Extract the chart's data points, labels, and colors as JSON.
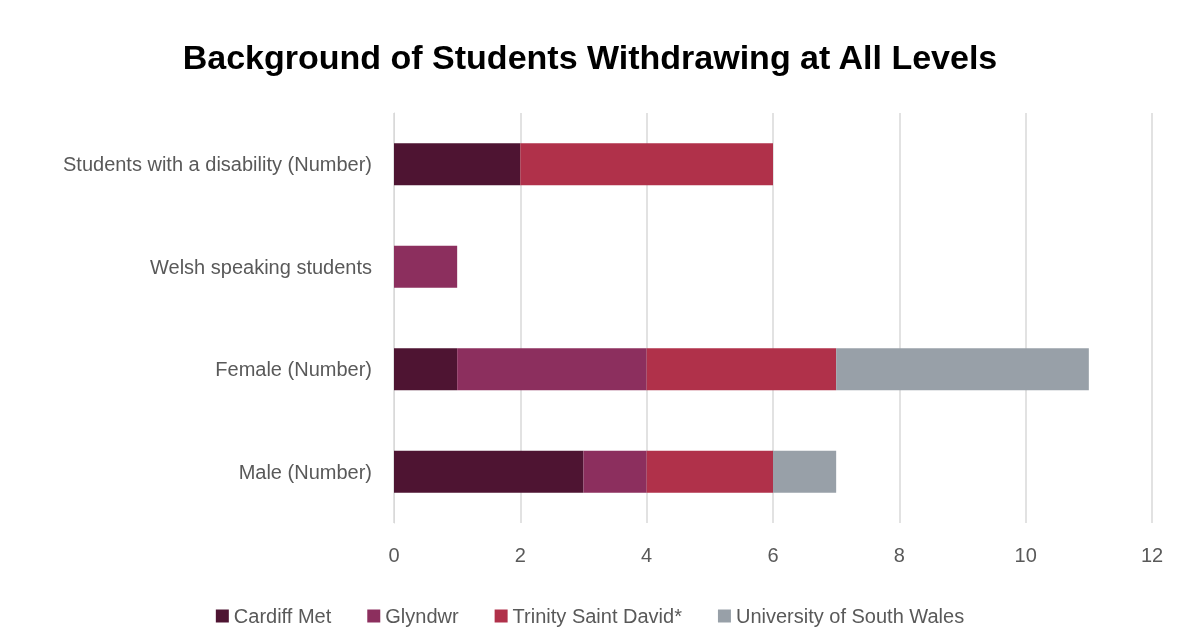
{
  "chart_data": {
    "type": "bar",
    "title": "Background of Students Withdrawing at All Levels",
    "orientation": "horizontal",
    "stacked": true,
    "categories": [
      "Students with a disability (Number)",
      "Welsh speaking students",
      "Female (Number)",
      "Male (Number)"
    ],
    "series": [
      {
        "name": "Cardiff Met",
        "color": "#4e1432",
        "values": [
          2,
          null,
          1,
          3
        ]
      },
      {
        "name": "Glyndwr",
        "color": "#8c2f5e",
        "values": [
          null,
          1,
          3,
          1
        ]
      },
      {
        "name": "Trinity Saint David*",
        "color": "#b0314a",
        "values": [
          4,
          null,
          3,
          2
        ]
      },
      {
        "name": "University of South Wales",
        "color": "#98a0a8",
        "values": [
          null,
          null,
          4,
          1
        ]
      }
    ],
    "xlim": [
      0,
      12
    ],
    "xticks": [
      0,
      2,
      4,
      6,
      8,
      10,
      12
    ],
    "grid": "x",
    "legend": "bottom"
  }
}
